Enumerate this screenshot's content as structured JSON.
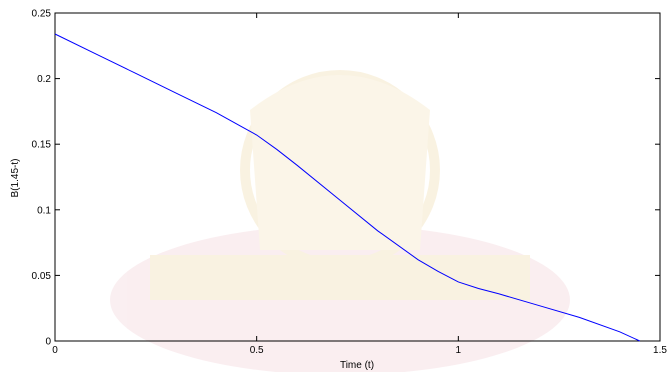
{
  "chart_data": {
    "type": "line",
    "title": "",
    "xlabel": "Time (t)",
    "ylabel": "B(1.45-t)",
    "xlim": [
      0,
      1.5
    ],
    "ylim": [
      0,
      0.25
    ],
    "xticks": [
      0,
      0.5,
      1,
      1.5
    ],
    "xtick_labels": [
      "0",
      "0.5",
      "1",
      "1.5"
    ],
    "yticks": [
      0,
      0.05,
      0.1,
      0.15,
      0.2,
      0.25
    ],
    "ytick_labels": [
      "0",
      "0.05",
      "0.1",
      "0.15",
      "0.2",
      "0.25"
    ],
    "grid": false,
    "series": [
      {
        "color": "#0000ff",
        "x": [
          0,
          0.1,
          0.2,
          0.3,
          0.4,
          0.5,
          0.55,
          0.6,
          0.7,
          0.8,
          0.9,
          0.95,
          1.0,
          1.05,
          1.1,
          1.2,
          1.3,
          1.4,
          1.45
        ],
        "y": [
          0.234,
          0.219,
          0.204,
          0.189,
          0.174,
          0.157,
          0.146,
          0.134,
          0.109,
          0.084,
          0.062,
          0.053,
          0.045,
          0.04,
          0.036,
          0.027,
          0.018,
          0.007,
          0.0
        ]
      }
    ],
    "background_watermark": "university-seal-watermark"
  }
}
